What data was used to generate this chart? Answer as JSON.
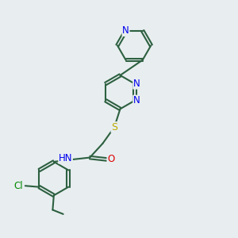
{
  "background_color": "#e8eef0",
  "bond_color": "#2d6040",
  "nitrogen_color": "#0000ee",
  "oxygen_color": "#dd0000",
  "sulfur_color": "#bbaa00",
  "chlorine_color": "#008800",
  "line_width": 1.5,
  "font_size": 8.5,
  "figsize": [
    3.0,
    3.0
  ],
  "dpi": 100,
  "xlim": [
    0,
    10
  ],
  "ylim": [
    0,
    10
  ]
}
